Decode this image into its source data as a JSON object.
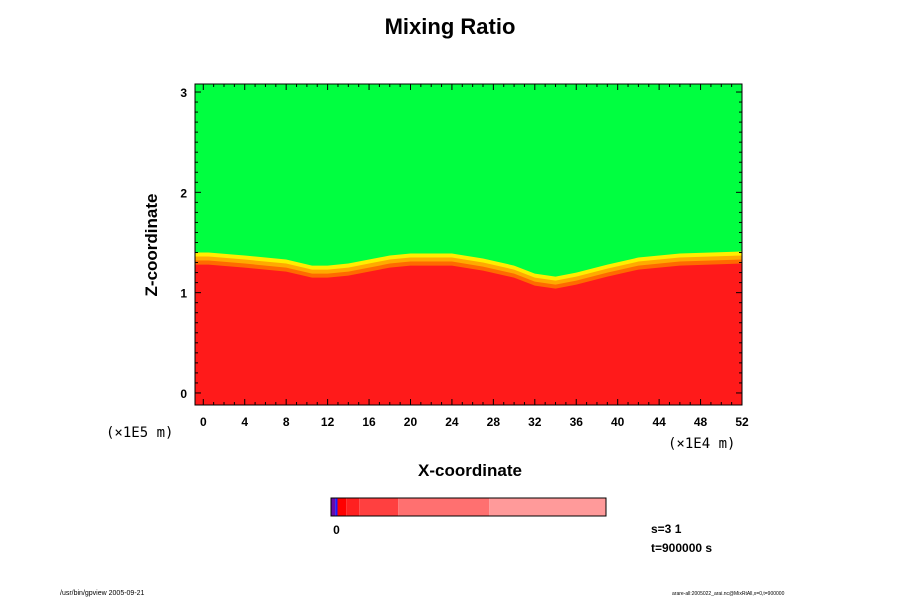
{
  "chart_data": {
    "type": "heatmap",
    "title": "Mixing Ratio",
    "xlabel": "X-coordinate",
    "ylabel": "Z-coordinate",
    "x_scale_label": "(×1E4 m)",
    "y_scale_label": "(×1E5 m)",
    "xlim": [
      -0.8,
      52
    ],
    "ylim": [
      -0.12,
      3.08
    ],
    "x_ticks": [
      "0",
      "4",
      "8",
      "12",
      "16",
      "20",
      "24",
      "28",
      "32",
      "36",
      "40",
      "44",
      "48",
      "52"
    ],
    "y_ticks": [
      "0",
      "1",
      "2",
      "3"
    ],
    "interface_z": [
      {
        "x": 0.5,
        "z": 1.4
      },
      {
        "x": 4,
        "z": 1.37
      },
      {
        "x": 8,
        "z": 1.33
      },
      {
        "x": 10.5,
        "z": 1.27
      },
      {
        "x": 12,
        "z": 1.27
      },
      {
        "x": 14,
        "z": 1.29
      },
      {
        "x": 16,
        "z": 1.33
      },
      {
        "x": 18,
        "z": 1.37
      },
      {
        "x": 20,
        "z": 1.39
      },
      {
        "x": 24,
        "z": 1.39
      },
      {
        "x": 27,
        "z": 1.34
      },
      {
        "x": 30,
        "z": 1.27
      },
      {
        "x": 32,
        "z": 1.19
      },
      {
        "x": 34,
        "z": 1.16
      },
      {
        "x": 36,
        "z": 1.2
      },
      {
        "x": 39,
        "z": 1.28
      },
      {
        "x": 42,
        "z": 1.35
      },
      {
        "x": 46,
        "z": 1.39
      },
      {
        "x": 52,
        "z": 1.41
      }
    ],
    "upper_layer_color": "#00ff40",
    "lower_layer_color": "#ff1a1a",
    "transition_colors": [
      "#ffee00",
      "#ffaa00",
      "#ff6a00"
    ],
    "colorbar": {
      "tick_label": "0",
      "segments": [
        {
          "color": "#6a0aa8",
          "width": 1
        },
        {
          "color": "#1a1aff",
          "width": 0.5
        },
        {
          "color": "#ff0000",
          "width": 2
        },
        {
          "color": "#ff2020",
          "width": 3
        },
        {
          "color": "#ff4040",
          "width": 9
        },
        {
          "color": "#ff7070",
          "width": 21
        },
        {
          "color": "#ff9a9a",
          "width": 27
        }
      ]
    },
    "info": [
      "s=3 1",
      "t=900000 s"
    ]
  },
  "footer": {
    "left": "/usr/bin/gpview 2005-09-21",
    "right": "arare-all:2005022_arai.nc@MixRtAll,x=0,t=900000"
  }
}
